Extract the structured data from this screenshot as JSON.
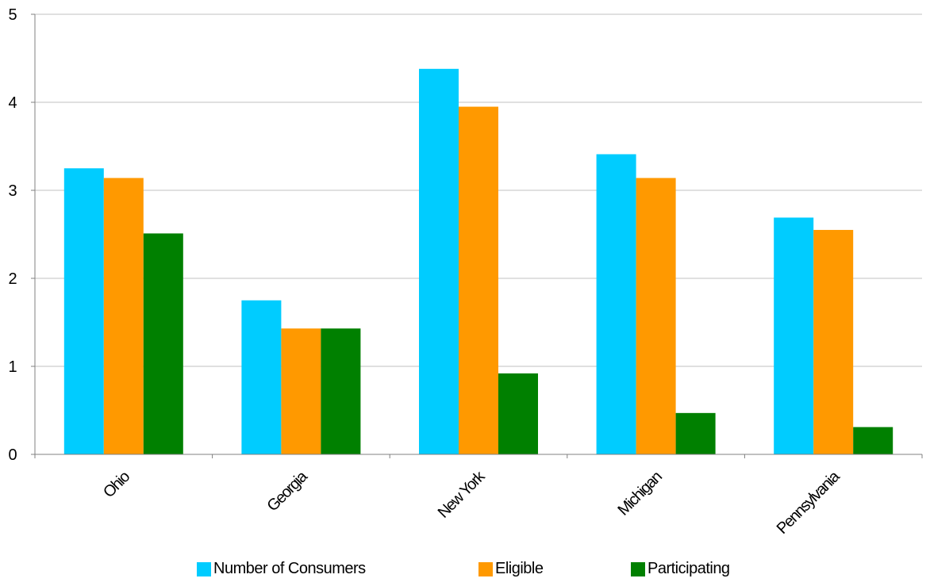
{
  "chart_data": {
    "type": "bar",
    "categories": [
      "Ohio",
      "Georgia",
      "New York",
      "Michigan",
      "Pennsylvania"
    ],
    "series": [
      {
        "name": "Number of Consumers",
        "color": "#00ccff",
        "values": [
          3.25,
          1.75,
          4.38,
          3.41,
          2.69
        ]
      },
      {
        "name": "Eligible",
        "color": "#ff9900",
        "values": [
          3.14,
          1.43,
          3.95,
          3.14,
          2.55
        ]
      },
      {
        "name": "Participating",
        "color": "#008000",
        "values": [
          2.51,
          1.43,
          0.92,
          0.47,
          0.31
        ]
      }
    ],
    "ylim": [
      0,
      5
    ],
    "yticks": [
      0,
      1,
      2,
      3,
      4,
      5
    ],
    "grid": true,
    "legend_position": "bottom",
    "title": "",
    "xlabel": "",
    "ylabel": ""
  }
}
